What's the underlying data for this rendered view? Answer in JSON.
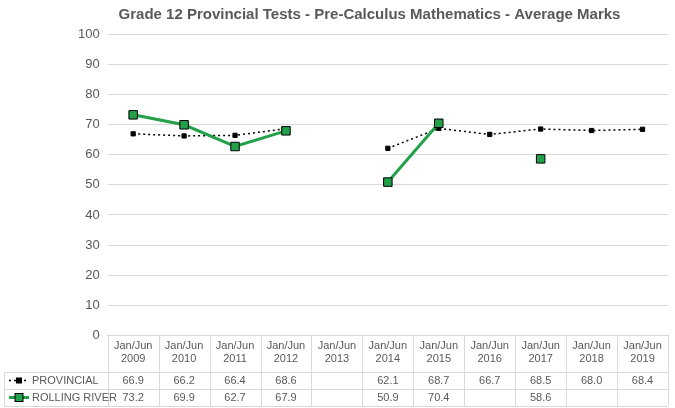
{
  "chart_data": {
    "type": "line",
    "title": "Grade 12 Provincial Tests - Pre-Calculus Mathematics - Average Marks",
    "categories": [
      "Jan/Jun 2009",
      "Jan/Jun 2010",
      "Jan/Jun 2011",
      "Jan/Jun 2012",
      "Jan/Jun 2013",
      "Jan/Jun 2014",
      "Jan/Jun 2015",
      "Jan/Jun 2016",
      "Jan/Jun 2017",
      "Jan/Jun 2018",
      "Jan/Jun 2019"
    ],
    "series": [
      {
        "name": "PROVINCIAL",
        "color": "#000000",
        "marker": "square",
        "line_style": "dotted",
        "values": [
          66.9,
          66.2,
          66.4,
          68.6,
          null,
          62.1,
          68.7,
          66.7,
          68.5,
          68.0,
          68.4
        ],
        "value_labels": [
          "66.9",
          "66.2",
          "66.4",
          "68.6",
          null,
          "62.1",
          "68.7",
          "66.7",
          "68.5",
          "68.0",
          "68.4"
        ]
      },
      {
        "name": "ROLLING RIVER",
        "color": "#23a14a",
        "marker": "square",
        "line_style": "solid",
        "values": [
          73.2,
          69.9,
          62.7,
          67.9,
          null,
          50.9,
          70.4,
          null,
          58.6,
          null,
          null
        ],
        "value_labels": [
          "73.2",
          "69.9",
          "62.7",
          "67.9",
          null,
          "50.9",
          "70.4",
          null,
          "58.6",
          null,
          null
        ]
      }
    ],
    "ylim": [
      0,
      100
    ],
    "yticks": [
      0,
      10,
      20,
      30,
      40,
      50,
      60,
      70,
      80,
      90,
      100
    ],
    "grid": true
  }
}
